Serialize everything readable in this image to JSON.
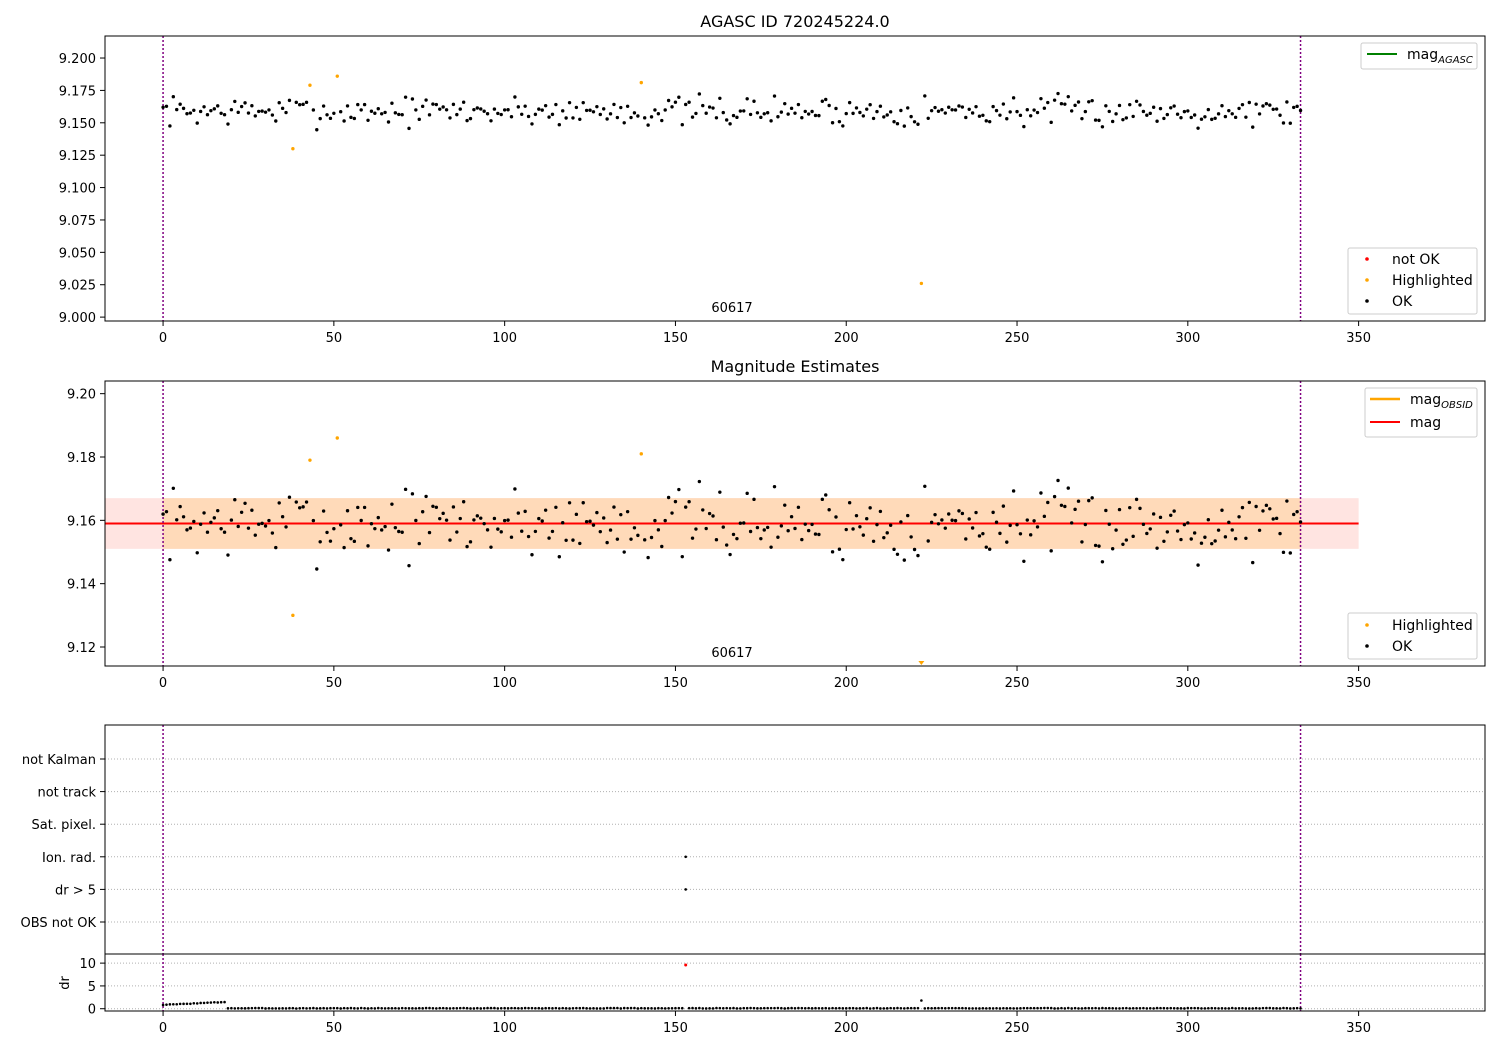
{
  "colors": {
    "ok": "#000000",
    "highlighted": "#ffa500",
    "not_ok": "#ff0000",
    "agasc_line": "#008000",
    "mag_line": "#ff0000",
    "obsid_line": "#ffa500",
    "obs_boundary": "#800080",
    "band_inner": "#ffdab9",
    "band_outer": "#ffe4e1"
  },
  "chart_data": [
    {
      "type": "scatter",
      "title": "AGASC ID 720245224.0",
      "xlim": [
        -17,
        387
      ],
      "ylim": [
        8.997,
        9.217
      ],
      "x_ticks": [
        0,
        50,
        100,
        150,
        200,
        250,
        300,
        350
      ],
      "y_ticks": [
        "9.000",
        "9.025",
        "9.050",
        "9.075",
        "9.100",
        "9.125",
        "9.150",
        "9.175",
        "9.200"
      ],
      "obs_boundaries": [
        0,
        333
      ],
      "obsid_label": {
        "text": "60617",
        "x": 166.5
      },
      "line_legend": [
        {
          "label": "mag",
          "subscript": "AGASC"
        }
      ],
      "marker_legend": [
        "not OK",
        "Highlighted",
        "OK"
      ],
      "highlighted_points": [
        [
          38,
          9.13
        ],
        [
          43,
          9.179
        ],
        [
          51,
          9.186
        ],
        [
          140,
          9.181
        ],
        [
          222,
          9.026
        ]
      ],
      "ok_points": {
        "start": 0,
        "end": 333,
        "center": 9.159,
        "spread": 0.009
      }
    },
    {
      "type": "scatter",
      "title": "Magnitude Estimates",
      "xlim": [
        -17,
        387
      ],
      "ylim": [
        9.114,
        9.204
      ],
      "x_ticks": [
        0,
        50,
        100,
        150,
        200,
        250,
        300,
        350
      ],
      "y_ticks": [
        "9.12",
        "9.14",
        "9.16",
        "9.18",
        "9.20"
      ],
      "obs_boundaries": [
        0,
        333
      ],
      "obsid_label": {
        "text": "60617",
        "x": 166.5
      },
      "mag": 9.159,
      "band_inner": [
        9.151,
        9.167
      ],
      "band_outer": [
        9.151,
        9.167
      ],
      "line_legend": [
        {
          "label": "mag",
          "subscript": "OBSID"
        },
        {
          "label": "mag",
          "subscript": ""
        }
      ],
      "marker_legend": [
        "Highlighted",
        "OK"
      ],
      "highlighted_points": [
        [
          38,
          9.13
        ],
        [
          43,
          9.179
        ],
        [
          51,
          9.186
        ],
        [
          140,
          9.181
        ]
      ],
      "off_scale_points": [
        [
          222,
          9.114
        ]
      ]
    },
    {
      "type": "scatter",
      "xlim": [
        -17,
        387
      ],
      "categories": [
        "not Kalman",
        "not track",
        "Sat. pixel.",
        "Ion. rad.",
        "dr > 5",
        "OBS not OK"
      ],
      "obs_boundaries": [
        0,
        333
      ],
      "flag_points": [
        {
          "category": "Ion. rad.",
          "x": 153
        },
        {
          "category": "dr > 5",
          "x": 153
        }
      ]
    },
    {
      "type": "scatter",
      "xlim": [
        -17,
        387
      ],
      "ylabel": "dr",
      "ylim": [
        -0.5,
        12
      ],
      "y_ticks": [
        "0",
        "5",
        "10"
      ],
      "x_ticks": [
        0,
        50,
        100,
        150,
        200,
        250,
        300,
        350
      ],
      "obs_boundaries": [
        0,
        333
      ],
      "outliers": [
        {
          "x": 153,
          "y": 9.6,
          "flag": "not OK"
        },
        {
          "x": 222,
          "y": 1.8,
          "flag": "OK"
        }
      ]
    }
  ]
}
